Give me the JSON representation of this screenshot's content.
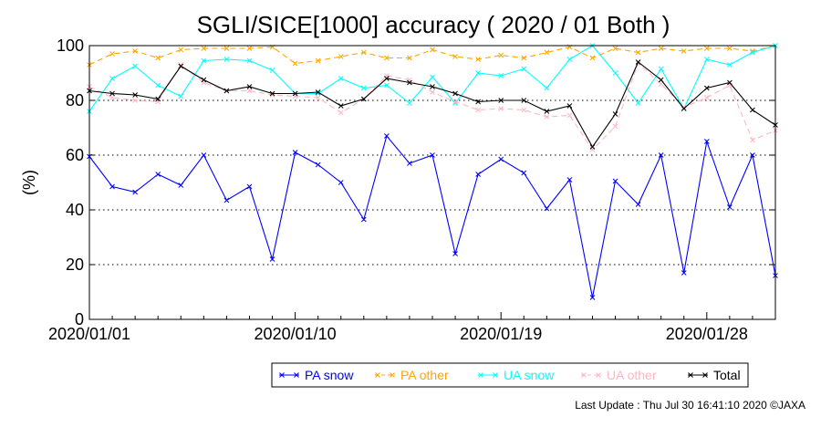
{
  "chart_data": {
    "type": "line",
    "title": "SGLI/SICE[1000] accuracy ( 2020 / 01 Both )",
    "ylabel": "(%)",
    "xlabel": "",
    "ylim": [
      0,
      100
    ],
    "yticks": [
      0,
      20,
      40,
      60,
      80,
      100
    ],
    "xlim": [
      1,
      31
    ],
    "xtick_positions": [
      1,
      10,
      19,
      28
    ],
    "xtick_labels": [
      "2020/01/01",
      "2020/01/10",
      "2020/01/19",
      "2020/01/28"
    ],
    "grid": "horizontal dotted at 20, 40, 60, 80",
    "legend_position": "bottom",
    "x": [
      1,
      2,
      3,
      4,
      5,
      6,
      7,
      8,
      9,
      10,
      11,
      12,
      13,
      14,
      15,
      16,
      17,
      18,
      19,
      20,
      21,
      22,
      23,
      24,
      25,
      26,
      27,
      28,
      29,
      30,
      31
    ],
    "series": [
      {
        "name": "PA snow",
        "color": "#0000ff",
        "dash": "solid",
        "values": [
          59.5,
          48.5,
          46.5,
          53,
          49,
          60,
          43.5,
          48.5,
          22,
          61,
          56.5,
          50,
          36.5,
          67,
          57,
          60,
          24,
          53,
          58.5,
          53.5,
          40.5,
          51,
          8,
          50.5,
          42,
          60,
          17,
          65,
          41,
          60,
          16
        ]
      },
      {
        "name": "PA other",
        "color": "#ffa500",
        "dash": "dashed",
        "values": [
          93,
          97,
          98,
          95.5,
          98.5,
          99,
          99,
          99,
          99.5,
          93.5,
          94.5,
          96,
          97.5,
          95.5,
          95.5,
          98.5,
          96,
          95,
          96.5,
          95.5,
          97.5,
          99.5,
          95.5,
          99,
          97.5,
          99,
          98,
          99,
          99,
          98,
          100
        ]
      },
      {
        "name": "UA snow",
        "color": "#00ffff",
        "dash": "solid",
        "values": [
          76,
          88,
          92.5,
          85.5,
          81.5,
          94.5,
          95,
          94.5,
          91,
          82.5,
          82.5,
          88,
          84.5,
          85.5,
          79,
          88.5,
          79,
          90,
          89,
          91.5,
          84.5,
          95,
          100,
          90,
          79,
          91.5,
          77,
          95,
          93,
          97.5,
          100
        ]
      },
      {
        "name": "UA other",
        "color": "#ffb6c1",
        "dash": "dashed",
        "values": [
          85,
          81,
          80,
          79.5,
          93,
          86.5,
          83.5,
          83.5,
          82,
          81.5,
          81,
          75.5,
          80.5,
          89,
          87.5,
          83,
          79.5,
          76.5,
          77,
          76.5,
          74,
          74.5,
          62,
          70.5,
          93.5,
          86,
          77.5,
          81,
          85.5,
          65.5,
          69
        ]
      },
      {
        "name": "Total",
        "color": "#000000",
        "dash": "solid",
        "values": [
          83.5,
          82.5,
          82,
          80.5,
          92.5,
          87.5,
          83.5,
          85,
          82.5,
          82.5,
          83,
          78,
          80.5,
          88,
          86.5,
          85,
          82.5,
          79.5,
          80,
          80,
          76,
          78,
          63,
          75,
          94,
          87.5,
          77,
          84.5,
          86.5,
          76.5,
          71
        ]
      }
    ]
  },
  "footer": {
    "text": "Last Update : Thu Jul 30 16:41:10 2020  ©JAXA"
  }
}
